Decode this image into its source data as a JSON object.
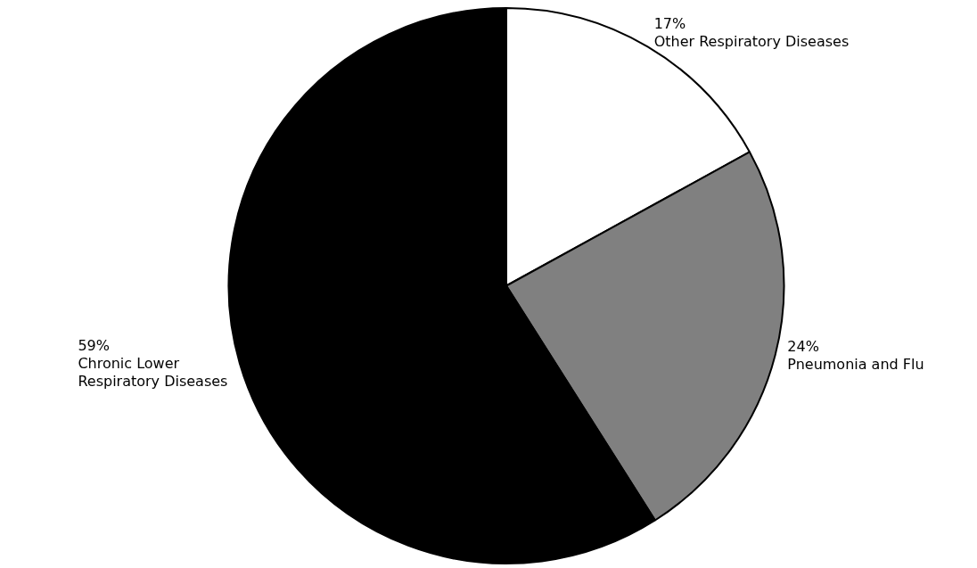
{
  "chart_data": {
    "type": "pie",
    "categories": [
      "Other Respiratory Diseases",
      "Pneumonia and Flu",
      "Chronic Lower Respiratory Diseases"
    ],
    "values": [
      17,
      24,
      59
    ],
    "colors": [
      "#ffffff",
      "#808080",
      "#000000"
    ],
    "value_labels": [
      "17%",
      "24%",
      "59%"
    ],
    "legend": false
  }
}
